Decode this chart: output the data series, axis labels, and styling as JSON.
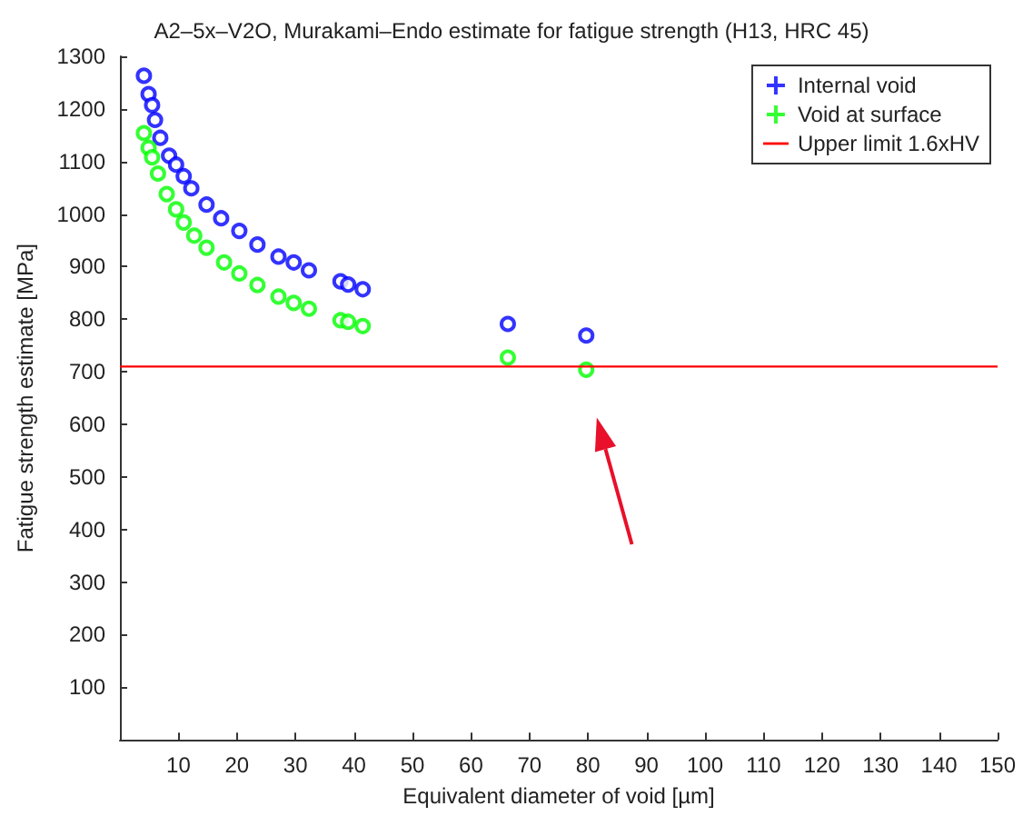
{
  "chart_data": {
    "type": "scatter",
    "title": "A2–5x–V2O, Murakami–Endo estimate for fatigue strength (H13, HRC 45)",
    "xlabel": "Equivalent diameter of void [µm]",
    "ylabel": "Fatigue strength estimate [MPa]",
    "series": [
      {
        "name": "Internal void",
        "color": "#0000ff",
        "x": [
          4.1,
          4.9,
          5.5,
          6.0,
          6.9,
          8.4,
          9.6,
          10.9,
          12.2,
          14.8,
          17.3,
          20.4,
          23.5,
          27.1,
          29.7,
          32.3,
          37.7,
          39.0,
          41.5,
          66.3,
          79.7
        ],
        "values": [
          1263,
          1228,
          1207,
          1179,
          1145,
          1111,
          1094,
          1072,
          1049,
          1018,
          992,
          968,
          942,
          919,
          908,
          893,
          872,
          866,
          857,
          791,
          769
        ]
      },
      {
        "name": "Void at surface",
        "color": "#00ff00",
        "x": [
          4.1,
          4.9,
          5.5,
          6.5,
          8.0,
          9.6,
          10.9,
          12.7,
          14.8,
          17.8,
          20.4,
          23.5,
          27.1,
          29.7,
          32.3,
          37.7,
          39.0,
          41.5,
          66.3,
          79.7
        ],
        "values": [
          1154,
          1126,
          1108,
          1077,
          1038,
          1009,
          984,
          959,
          936,
          908,
          887,
          865,
          843,
          831,
          820,
          798,
          795,
          787,
          727,
          704
        ]
      }
    ],
    "ref_lines": [
      {
        "axis": "y",
        "value": 710,
        "label": "Upper limit 1.6xHV",
        "color": "#ff0000"
      }
    ],
    "xlim": [
      0,
      150
    ],
    "xticks": [
      10,
      20,
      30,
      40,
      50,
      60,
      70,
      80,
      90,
      100,
      110,
      120,
      130,
      140,
      150
    ],
    "ylim": [
      0,
      1300
    ],
    "yticks": [
      100,
      200,
      300,
      400,
      500,
      600,
      700,
      800,
      900,
      1000,
      1100,
      1200,
      1300
    ],
    "marker": "circle",
    "grid": false,
    "legend": "top right"
  }
}
